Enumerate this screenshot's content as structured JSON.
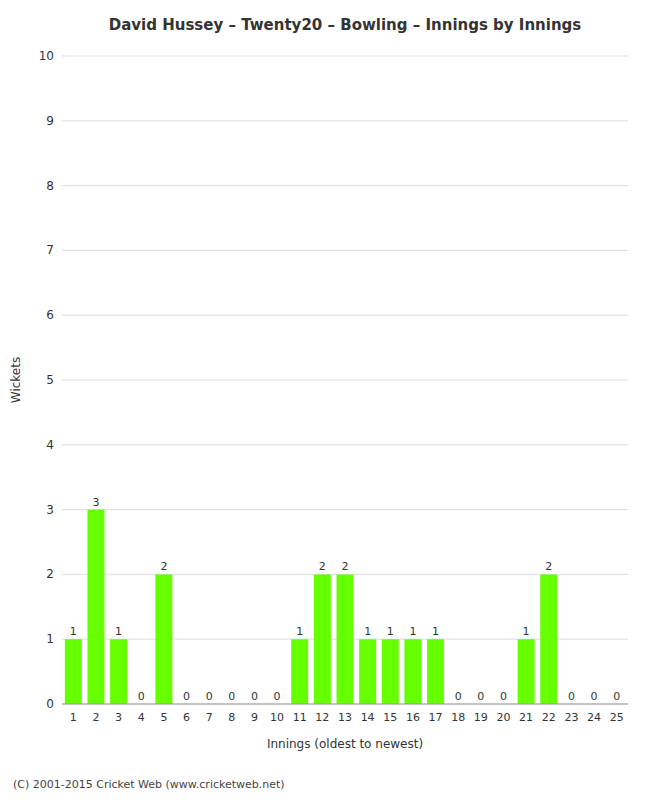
{
  "chart_data": {
    "type": "bar",
    "title": "David Hussey – Twenty20 – Bowling – Innings by Innings",
    "x_label": "Innings (oldest to newest)",
    "y_label": "Wickets",
    "categories": [
      1,
      2,
      3,
      4,
      5,
      6,
      7,
      8,
      9,
      10,
      11,
      12,
      13,
      14,
      15,
      16,
      17,
      18,
      19,
      20,
      21,
      22,
      23,
      24,
      25
    ],
    "values": [
      1,
      3,
      1,
      0,
      2,
      0,
      0,
      0,
      0,
      0,
      1,
      2,
      2,
      1,
      1,
      1,
      1,
      0,
      0,
      0,
      1,
      2,
      0,
      0,
      0
    ],
    "color": "#66ff00",
    "ylim": [
      0,
      10
    ],
    "yticks": [
      0,
      1,
      2,
      3,
      4,
      5,
      6,
      7,
      8,
      9,
      10
    ],
    "grid": true,
    "data_labels": true,
    "annotations": [
      "(C) 2001-2015 Cricket Web (www.cricketweb.net)"
    ]
  }
}
